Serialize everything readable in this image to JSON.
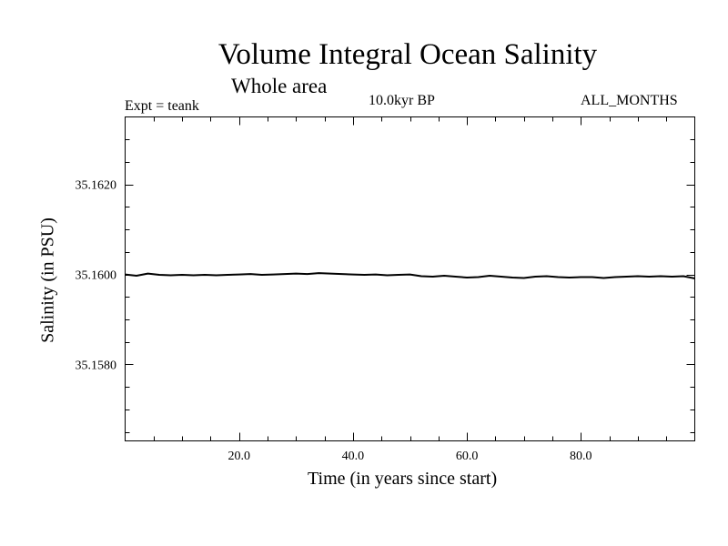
{
  "chart_data": {
    "type": "line",
    "title": "Volume Integral Ocean Salinity",
    "subtitle": "Whole area",
    "annotations": {
      "experiment": "Expt = teank",
      "period": "10.0kyr BP",
      "months": "ALL_MONTHS"
    },
    "xlabel": "Time (in years since start)",
    "ylabel": "Salinity (in PSU)",
    "xlim": [
      0,
      100
    ],
    "ylim": [
      35.1563,
      35.1635
    ],
    "x_ticks": [
      20,
      40,
      60,
      80
    ],
    "x_tick_labels": [
      "20.0",
      "40.0",
      "60.0",
      "80.0"
    ],
    "y_ticks": [
      35.158,
      35.16,
      35.162
    ],
    "y_tick_labels": [
      "35.1580",
      "35.1600",
      "35.1620"
    ],
    "grid": false,
    "series": [
      {
        "name": "Salinity",
        "color": "#000000",
        "x": [
          0,
          2,
          4,
          6,
          8,
          10,
          12,
          14,
          16,
          18,
          20,
          22,
          24,
          26,
          28,
          30,
          32,
          34,
          36,
          38,
          40,
          42,
          44,
          46,
          48,
          50,
          52,
          54,
          56,
          58,
          60,
          62,
          64,
          66,
          68,
          70,
          72,
          74,
          76,
          78,
          80,
          82,
          84,
          86,
          88,
          90,
          92,
          94,
          96,
          98,
          100
        ],
        "values": [
          35.16,
          35.15997,
          35.16002,
          35.15999,
          35.15998,
          35.15999,
          35.15998,
          35.15999,
          35.15998,
          35.15999,
          35.16,
          35.16001,
          35.15999,
          35.16,
          35.16001,
          35.16002,
          35.16001,
          35.16003,
          35.16002,
          35.16001,
          35.16,
          35.15999,
          35.16,
          35.15998,
          35.15999,
          35.16,
          35.15996,
          35.15995,
          35.15997,
          35.15995,
          35.15993,
          35.15994,
          35.15997,
          35.15995,
          35.15993,
          35.15992,
          35.15995,
          35.15996,
          35.15994,
          35.15993,
          35.15994,
          35.15994,
          35.15992,
          35.15994,
          35.15995,
          35.15996,
          35.15995,
          35.15996,
          35.15995,
          35.15996,
          35.15991
        ]
      }
    ]
  }
}
